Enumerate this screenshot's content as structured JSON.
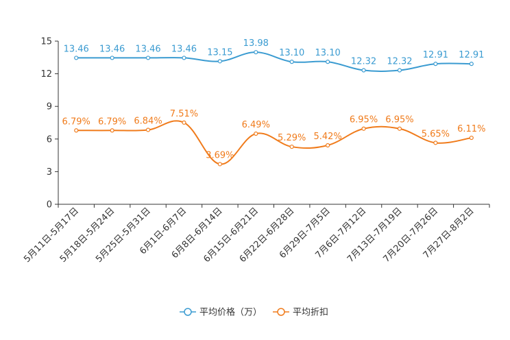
{
  "chart_data": {
    "type": "line",
    "categories": [
      "5月11日-5月17日",
      "5月18日-5月24日",
      "5月25日-5月31日",
      "6月1日-6月7日",
      "6月8日-6月14日",
      "6月15日-6月21日",
      "6月22日-6月28日",
      "6月29日-7月5日",
      "7月6日-7月12日",
      "7月13日-7月19日",
      "7月20日-7月26日",
      "7月27日-8月2日"
    ],
    "ylim": [
      0,
      15
    ],
    "yticks": [
      0,
      3,
      6,
      9,
      12,
      15
    ],
    "series": [
      {
        "name": "平均价格（万）",
        "color": "#3a9bd1",
        "values": [
          13.46,
          13.46,
          13.46,
          13.46,
          13.15,
          13.98,
          13.1,
          13.1,
          12.32,
          12.32,
          12.91,
          12.91
        ],
        "labels": [
          "13.46",
          "13.46",
          "13.46",
          "13.46",
          "13.15",
          "13.98",
          "13.10",
          "13.10",
          "12.32",
          "12.32",
          "12.91",
          "12.91"
        ]
      },
      {
        "name": "平均折扣",
        "color": "#f07b1b",
        "values": [
          6.79,
          6.79,
          6.84,
          7.51,
          3.69,
          6.49,
          5.29,
          5.42,
          6.95,
          6.95,
          5.65,
          6.11
        ],
        "labels": [
          "6.79%",
          "6.79%",
          "6.84%",
          "7.51%",
          "3.69%",
          "6.49%",
          "5.29%",
          "5.42%",
          "6.95%",
          "6.95%",
          "5.65%",
          "6.11%"
        ]
      }
    ],
    "legend_position": "bottom-center"
  }
}
